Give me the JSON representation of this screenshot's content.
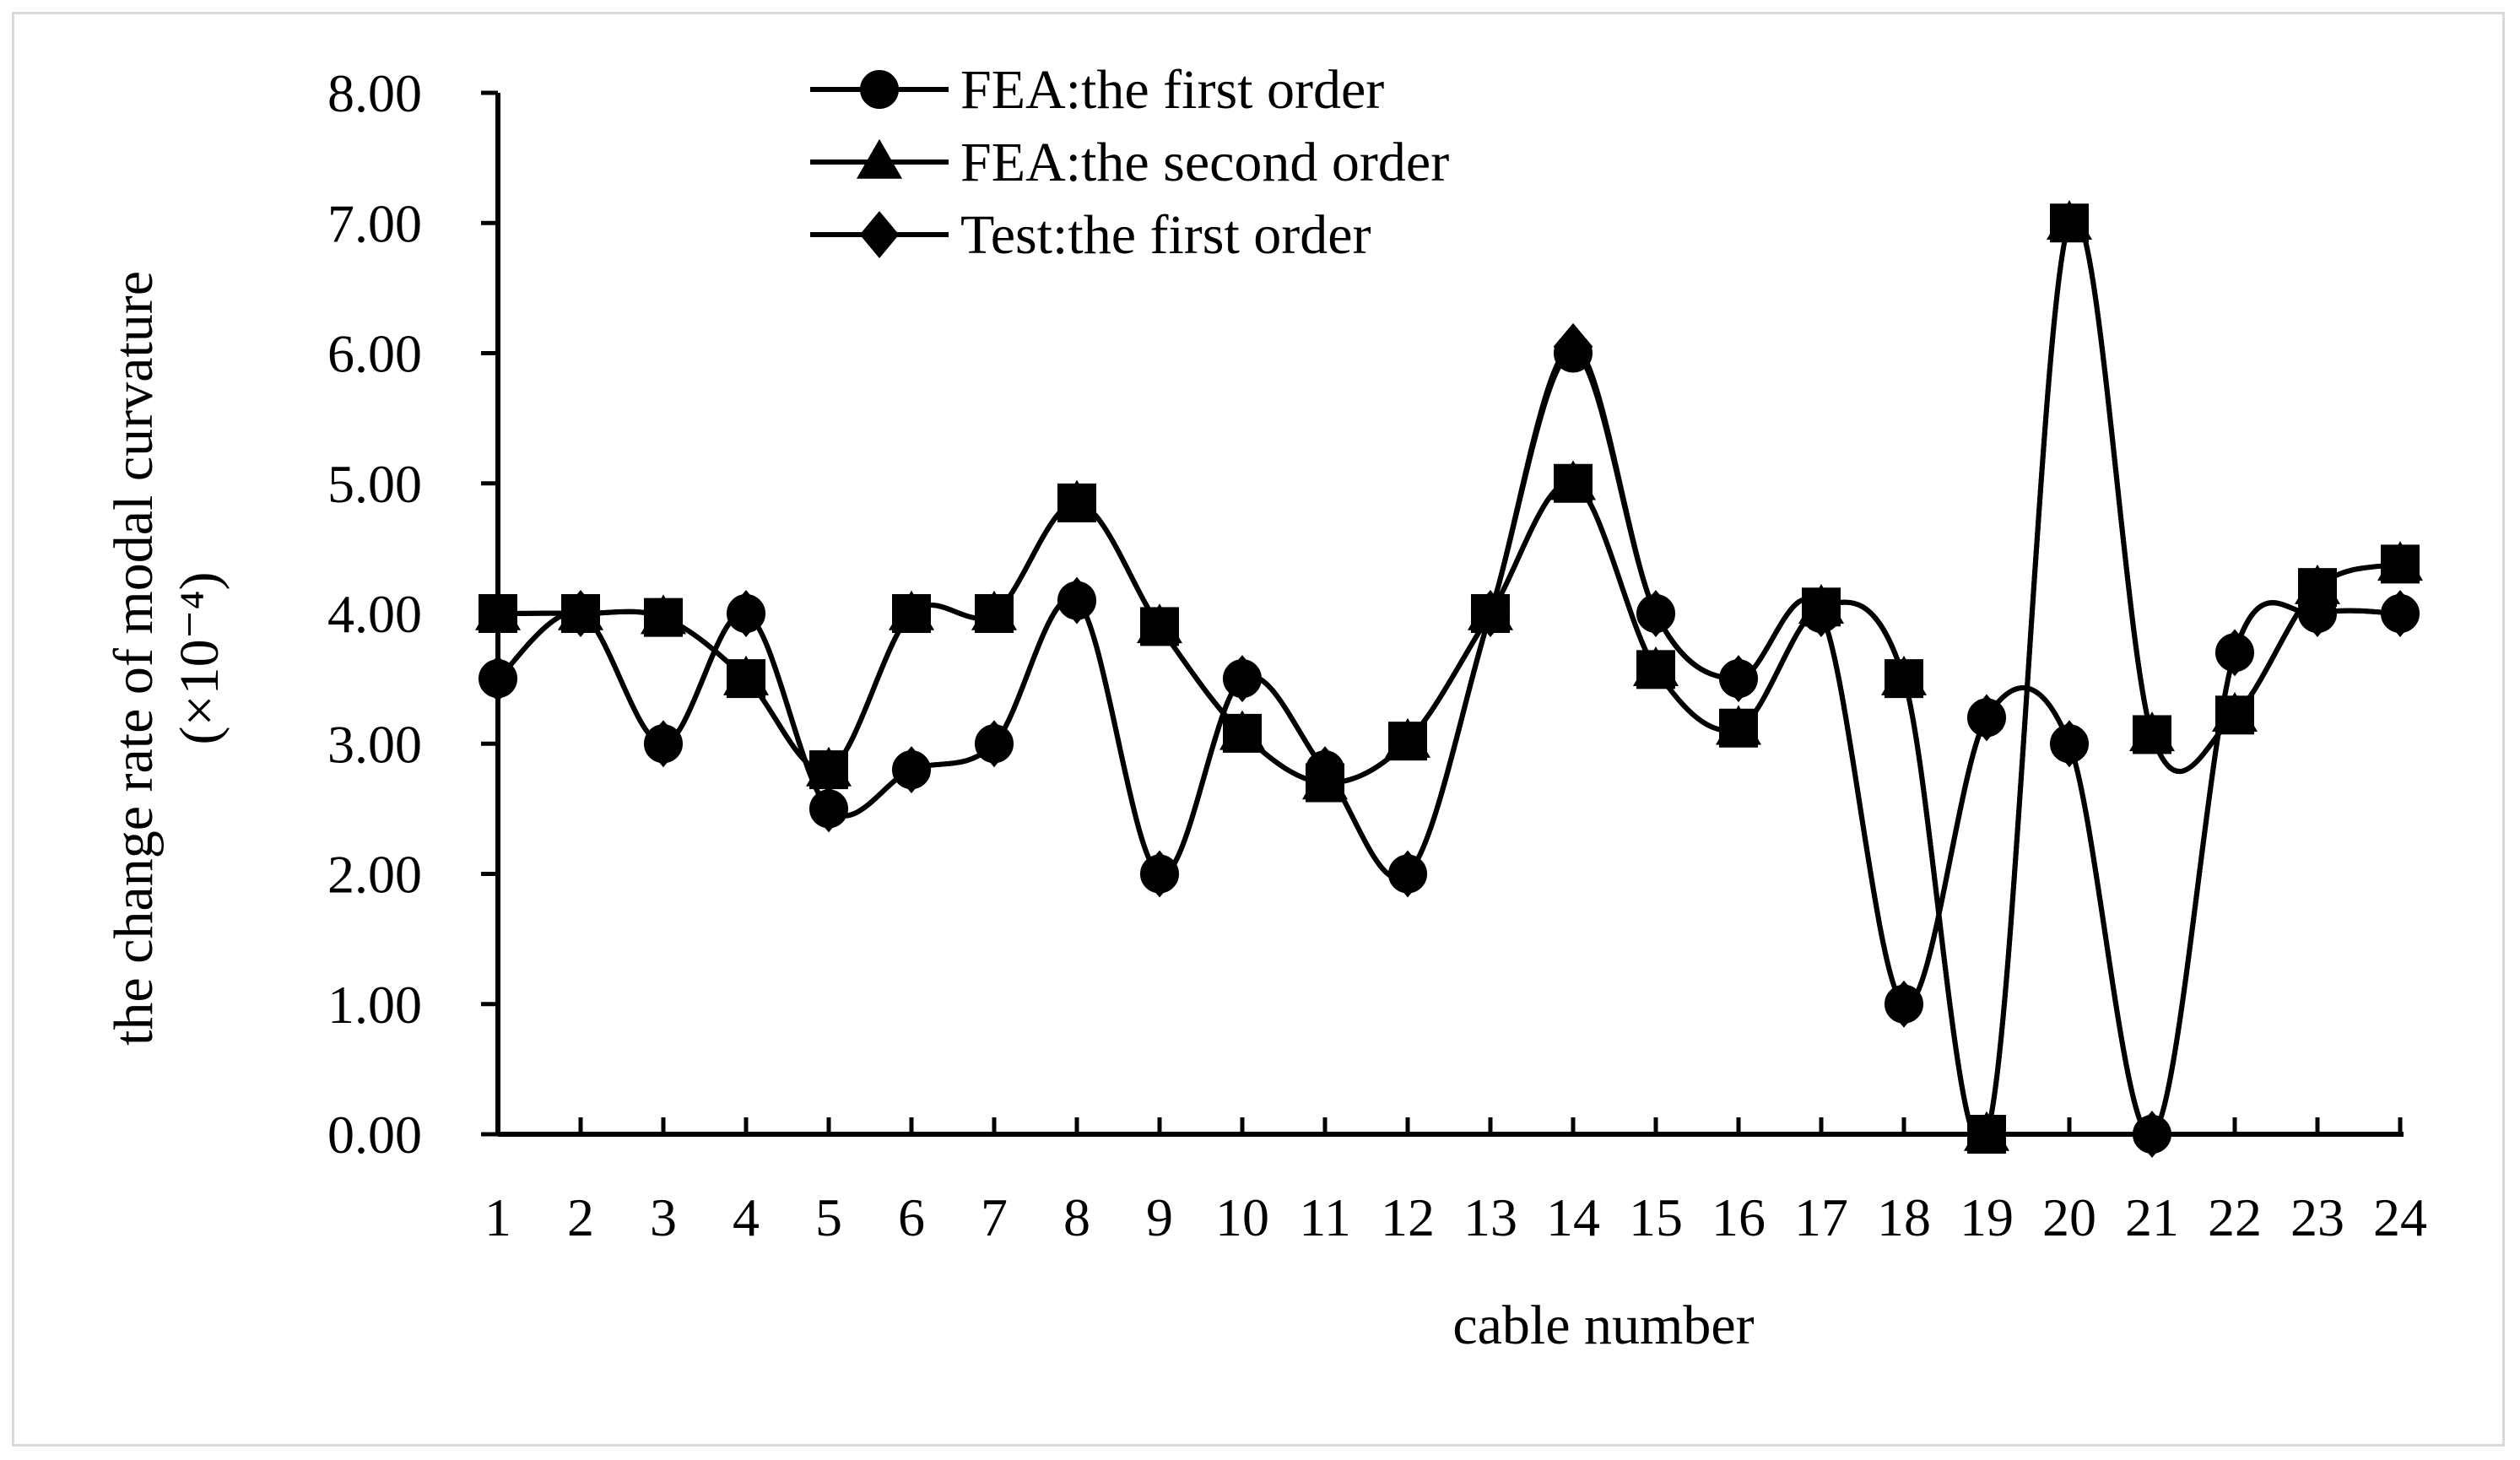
{
  "chart_data": {
    "type": "line",
    "xlabel": "cable number",
    "ylabel": "the change rate of modal curvature",
    "ylabel_unit": "(×10⁻⁴)",
    "categories": [
      "1",
      "2",
      "3",
      "4",
      "5",
      "6",
      "7",
      "8",
      "9",
      "10",
      "11",
      "12",
      "13",
      "14",
      "15",
      "16",
      "17",
      "18",
      "19",
      "20",
      "21",
      "22",
      "23",
      "24"
    ],
    "ylim": [
      0,
      8
    ],
    "y_ticks": [
      "0.00",
      "1.00",
      "2.00",
      "3.00",
      "4.00",
      "5.00",
      "6.00",
      "7.00",
      "8.00"
    ],
    "grid": false,
    "legend_position": "top-center",
    "series": [
      {
        "name": "FEA:the first order",
        "marker": "circle",
        "values": [
          3.5,
          4.0,
          3.0,
          4.0,
          2.5,
          2.8,
          3.0,
          4.1,
          2.0,
          3.5,
          2.8,
          2.0,
          4.0,
          6.0,
          4.0,
          3.5,
          4.0,
          1.0,
          3.2,
          3.0,
          0.0,
          3.7,
          4.0,
          4.0
        ]
      },
      {
        "name": "FEA:the second order",
        "marker": "triangle",
        "values": [
          4.0,
          4.0,
          3.97,
          3.5,
          2.8,
          4.0,
          4.0,
          4.85,
          3.9,
          3.08,
          2.7,
          3.02,
          4.0,
          5.0,
          3.57,
          3.12,
          4.05,
          3.5,
          0.0,
          7.0,
          3.07,
          3.22,
          4.2,
          4.38
        ]
      },
      {
        "name": "Test:the first order",
        "marker": "diamond",
        "values": [
          3.5,
          4.0,
          3.0,
          4.0,
          2.5,
          2.8,
          3.0,
          4.1,
          2.0,
          3.5,
          2.8,
          2.0,
          4.0,
          6.05,
          4.0,
          3.5,
          4.0,
          1.0,
          3.2,
          3.0,
          0.0,
          3.7,
          4.0,
          4.0
        ]
      },
      {
        "name": "",
        "marker": "square",
        "values": [
          4.0,
          4.0,
          3.97,
          3.5,
          2.8,
          4.0,
          4.0,
          4.85,
          3.9,
          3.08,
          2.7,
          3.02,
          4.0,
          5.0,
          3.57,
          3.12,
          4.05,
          3.5,
          0.0,
          7.0,
          3.07,
          3.22,
          4.2,
          4.38
        ]
      }
    ],
    "colors": {
      "line": "#000000",
      "frame_border": "#d9d9d9"
    }
  }
}
